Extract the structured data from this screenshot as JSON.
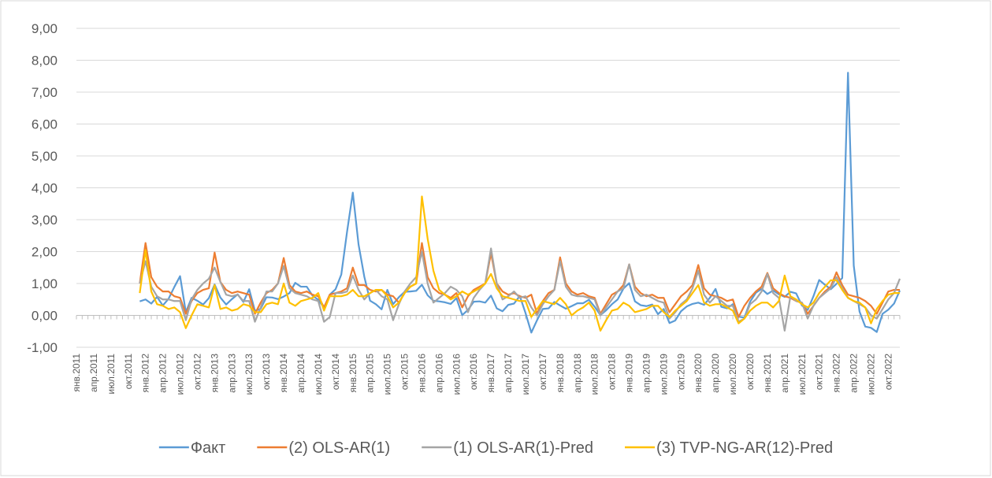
{
  "chart_data": {
    "type": "line",
    "categories": [
      "янв.2011",
      null,
      null,
      "апр.2011",
      null,
      null,
      "июл.2011",
      null,
      null,
      "окт.2011",
      null,
      null,
      "янв.2012",
      null,
      null,
      "апр.2012",
      null,
      null,
      "июл.2012",
      null,
      null,
      "окт.2012",
      null,
      null,
      "янв.2013",
      null,
      null,
      "апр.2013",
      null,
      null,
      "июл.2013",
      null,
      null,
      "окт.2013",
      null,
      null,
      "янв.2014",
      null,
      null,
      "апр.2014",
      null,
      null,
      "июл.2014",
      null,
      null,
      "окт.2014",
      null,
      null,
      "янв.2015",
      null,
      null,
      "апр.2015",
      null,
      null,
      "июл.2015",
      null,
      null,
      "окт.2015",
      null,
      null,
      "янв.2016",
      null,
      null,
      "апр.2016",
      null,
      null,
      "июл.2016",
      null,
      null,
      "окт.2016",
      null,
      null,
      "янв.2017",
      null,
      null,
      "апр.2017",
      null,
      null,
      "июл.2017",
      null,
      null,
      "окт.2017",
      null,
      null,
      "янв.2018",
      null,
      null,
      "апр.2018",
      null,
      null,
      "июл.2018",
      null,
      null,
      "окт.2018",
      null,
      null,
      "янв.2019",
      null,
      null,
      "апр.2019",
      null,
      null,
      "июл.2019",
      null,
      null,
      "окт.2019",
      null,
      null,
      "янв.2020",
      null,
      null,
      "апр.2020",
      null,
      null,
      "июл.2020",
      null,
      null,
      "окт.2020",
      null,
      null,
      "янв.2021",
      null,
      null,
      "апр.2021",
      null,
      null,
      "июл.2021",
      null,
      null,
      "окт.2021",
      null,
      null,
      "янв.2022",
      null,
      null,
      "апр.2022",
      null,
      null,
      "июл.2022",
      null,
      null,
      "окт.2022",
      null,
      null
    ],
    "series": [
      {
        "name": "Факт",
        "color": "#5b9bd5",
        "values": [
          null,
          null,
          null,
          null,
          null,
          null,
          null,
          null,
          null,
          null,
          null,
          0.44,
          0.5,
          0.37,
          0.58,
          0.31,
          0.52,
          0.89,
          1.23,
          0.1,
          0.55,
          0.46,
          0.34,
          0.54,
          0.97,
          0.56,
          0.34,
          0.51,
          0.66,
          0.42,
          0.82,
          0.14,
          0.21,
          0.57,
          0.56,
          0.51,
          0.59,
          0.7,
          1.02,
          0.9,
          0.9,
          0.62,
          0.49,
          0.24,
          0.65,
          0.82,
          1.28,
          2.62,
          3.85,
          2.22,
          1.21,
          0.46,
          0.35,
          0.19,
          0.8,
          0.35,
          0.57,
          0.74,
          0.75,
          0.77,
          0.96,
          0.63,
          0.46,
          0.44,
          0.41,
          0.36,
          0.54,
          0.01,
          0.17,
          0.43,
          0.44,
          0.4,
          0.62,
          0.22,
          0.13,
          0.33,
          0.37,
          0.61,
          0.07,
          -0.54,
          -0.15,
          0.2,
          0.22,
          0.42,
          0.31,
          0.21,
          0.29,
          0.38,
          0.38,
          0.49,
          0.27,
          0.01,
          0.16,
          0.35,
          0.5,
          0.84,
          1.01,
          0.44,
          0.32,
          0.29,
          0.34,
          0.04,
          0.2,
          -0.24,
          -0.16,
          0.13,
          0.28,
          0.36,
          0.4,
          0.33,
          0.55,
          0.83,
          0.27,
          0.22,
          0.35,
          -0.04,
          -0.07,
          0.43,
          0.71,
          0.83,
          0.67,
          0.78,
          0.66,
          0.58,
          0.74,
          0.69,
          0.31,
          0.17,
          0.6,
          1.11,
          0.96,
          0.82,
          0.99,
          1.17,
          7.61,
          1.56,
          0.12,
          -0.35,
          -0.39,
          -0.52,
          0.05,
          0.18,
          0.37,
          0.78
        ]
      },
      {
        "name": "(2) OLS-AR(1)",
        "color": "#ed7d31",
        "values": [
          null,
          null,
          null,
          null,
          null,
          null,
          null,
          null,
          null,
          null,
          null,
          1.0,
          2.27,
          1.2,
          0.9,
          0.75,
          0.75,
          0.6,
          0.55,
          0.05,
          0.45,
          0.7,
          0.8,
          0.85,
          1.97,
          1.05,
          0.8,
          0.7,
          0.75,
          0.7,
          0.65,
          0.05,
          0.4,
          0.7,
          0.8,
          1.0,
          1.8,
          0.95,
          0.75,
          0.7,
          0.75,
          0.65,
          0.6,
          0.25,
          0.65,
          0.7,
          0.75,
          0.85,
          1.5,
          0.95,
          0.95,
          0.8,
          0.75,
          0.8,
          0.65,
          0.6,
          0.4,
          0.7,
          0.9,
          1.0,
          2.27,
          1.2,
          0.85,
          0.7,
          0.65,
          0.55,
          0.7,
          0.25,
          0.6,
          0.8,
          0.9,
          1.0,
          1.95,
          1.0,
          0.75,
          0.65,
          0.7,
          0.6,
          0.55,
          0.65,
          0.05,
          0.45,
          0.7,
          0.8,
          1.82,
          1.0,
          0.75,
          0.65,
          0.7,
          0.6,
          0.55,
          0.05,
          0.35,
          0.65,
          0.75,
          0.95,
          1.6,
          0.9,
          0.7,
          0.6,
          0.65,
          0.55,
          0.55,
          0.1,
          0.35,
          0.6,
          0.75,
          0.95,
          1.58,
          0.85,
          0.65,
          0.6,
          0.55,
          0.45,
          0.5,
          -0.05,
          0.3,
          0.55,
          0.75,
          0.9,
          1.33,
          0.85,
          0.7,
          0.6,
          0.55,
          0.45,
          0.4,
          0.05,
          0.3,
          0.55,
          0.75,
          0.9,
          1.35,
          0.95,
          0.65,
          0.6,
          0.55,
          0.45,
          0.3,
          0.05,
          0.4,
          0.75,
          0.8,
          0.8
        ]
      },
      {
        "name": "(1) OLS-AR(1)-Pred",
        "color": "#a5a5a5",
        "values": [
          null,
          null,
          null,
          null,
          null,
          null,
          null,
          null,
          null,
          null,
          null,
          1.0,
          1.7,
          0.9,
          0.6,
          0.5,
          0.5,
          0.45,
          0.45,
          -0.15,
          0.5,
          0.8,
          1.0,
          1.15,
          1.5,
          1.05,
          0.65,
          0.6,
          0.65,
          0.45,
          0.45,
          -0.2,
          0.25,
          0.75,
          0.75,
          1.0,
          1.55,
          0.85,
          0.7,
          0.65,
          0.6,
          0.5,
          0.45,
          -0.2,
          -0.05,
          0.7,
          0.7,
          0.75,
          1.25,
          0.8,
          0.5,
          0.7,
          0.8,
          0.6,
          0.5,
          -0.15,
          0.35,
          0.75,
          1.0,
          1.2,
          2.0,
          1.0,
          0.4,
          0.55,
          0.7,
          0.9,
          0.8,
          0.6,
          0.1,
          0.55,
          0.8,
          1.0,
          2.1,
          1.0,
          0.5,
          0.6,
          0.75,
          0.55,
          0.6,
          0.25,
          0.0,
          0.35,
          0.6,
          0.8,
          1.7,
          0.9,
          0.65,
          0.6,
          0.6,
          0.55,
          0.5,
          0.0,
          0.25,
          0.5,
          0.75,
          0.85,
          1.6,
          0.8,
          0.6,
          0.65,
          0.55,
          0.45,
          0.4,
          -0.1,
          0.1,
          0.35,
          0.5,
          0.85,
          1.4,
          0.65,
          0.4,
          0.6,
          0.45,
          0.3,
          0.3,
          -0.2,
          -0.1,
          0.35,
          0.5,
          0.75,
          1.3,
          0.7,
          0.55,
          -0.48,
          0.6,
          0.45,
          0.4,
          -0.1,
          0.3,
          0.55,
          0.7,
          0.85,
          1.2,
          0.85,
          0.55,
          0.45,
          0.35,
          0.25,
          0.0,
          -0.1,
          0.2,
          0.5,
          0.7,
          1.15
        ]
      },
      {
        "name": "(3) TVP-NG-AR(12)-Pred",
        "color": "#ffc000",
        "values": [
          null,
          null,
          null,
          null,
          null,
          null,
          null,
          null,
          null,
          null,
          null,
          0.7,
          2.05,
          0.75,
          0.35,
          0.3,
          0.2,
          0.25,
          0.1,
          -0.4,
          0.0,
          0.35,
          0.3,
          0.25,
          0.95,
          0.2,
          0.25,
          0.15,
          0.2,
          0.35,
          0.3,
          0.1,
          0.1,
          0.35,
          0.4,
          0.35,
          1.0,
          0.4,
          0.3,
          0.45,
          0.5,
          0.55,
          0.7,
          0.15,
          0.6,
          0.6,
          0.6,
          0.65,
          0.8,
          0.6,
          0.6,
          0.7,
          0.8,
          0.8,
          0.6,
          0.25,
          0.4,
          0.7,
          0.9,
          1.0,
          3.73,
          2.4,
          1.4,
          0.8,
          0.65,
          0.5,
          0.6,
          0.75,
          0.65,
          0.75,
          0.85,
          1.0,
          1.3,
          0.85,
          0.6,
          0.55,
          0.5,
          0.45,
          0.45,
          -0.05,
          0.2,
          0.45,
          0.4,
          0.35,
          0.55,
          0.35,
          0.0,
          0.15,
          0.25,
          0.4,
          0.15,
          -0.48,
          -0.15,
          0.15,
          0.2,
          0.4,
          0.3,
          0.1,
          0.15,
          0.2,
          0.3,
          0.3,
          0.1,
          -0.05,
          0.15,
          0.3,
          0.45,
          0.7,
          0.95,
          0.4,
          0.3,
          0.35,
          0.35,
          0.25,
          0.15,
          -0.25,
          -0.1,
          0.15,
          0.3,
          0.4,
          0.4,
          0.25,
          0.45,
          1.25,
          0.6,
          0.5,
          0.35,
          0.25,
          0.4,
          0.7,
          0.9,
          1.1,
          1.1,
          0.8,
          0.55,
          0.45,
          0.4,
          0.25,
          -0.25,
          0.2,
          0.45,
          0.65,
          0.7,
          0.7
        ]
      }
    ],
    "ylim": [
      -1,
      9
    ],
    "yticks": [
      {
        "value": -1,
        "label": "-1,00"
      },
      {
        "value": 0,
        "label": "0,00"
      },
      {
        "value": 1,
        "label": "1,00"
      },
      {
        "value": 2,
        "label": "2,00"
      },
      {
        "value": 3,
        "label": "3,00"
      },
      {
        "value": 4,
        "label": "4,00"
      },
      {
        "value": 5,
        "label": "5,00"
      },
      {
        "value": 6,
        "label": "6,00"
      },
      {
        "value": 7,
        "label": "7,00"
      },
      {
        "value": 8,
        "label": "8,00"
      },
      {
        "value": 9,
        "label": "9,00"
      }
    ],
    "grid": true,
    "legend": "bottom"
  }
}
